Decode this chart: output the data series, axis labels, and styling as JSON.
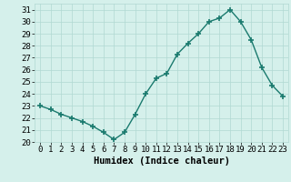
{
  "x": [
    0,
    1,
    2,
    3,
    4,
    5,
    6,
    7,
    8,
    9,
    10,
    11,
    12,
    13,
    14,
    15,
    16,
    17,
    18,
    19,
    20,
    21,
    22,
    23
  ],
  "y": [
    23.0,
    22.7,
    22.3,
    22.0,
    21.7,
    21.3,
    20.8,
    20.2,
    20.8,
    22.3,
    24.0,
    25.3,
    25.7,
    27.3,
    28.2,
    29.0,
    30.0,
    30.3,
    31.0,
    30.0,
    28.5,
    26.2,
    24.7,
    23.8
  ],
  "line_color": "#1a7a6e",
  "marker": "+",
  "marker_size": 4,
  "marker_lw": 1.2,
  "bg_color": "#d5f0eb",
  "grid_color": "#b0d8d2",
  "xlabel": "Humidex (Indice chaleur)",
  "xlim": [
    -0.5,
    23.5
  ],
  "ylim": [
    20,
    31.5
  ],
  "yticks": [
    20,
    21,
    22,
    23,
    24,
    25,
    26,
    27,
    28,
    29,
    30,
    31
  ],
  "xticks": [
    0,
    1,
    2,
    3,
    4,
    5,
    6,
    7,
    8,
    9,
    10,
    11,
    12,
    13,
    14,
    15,
    16,
    17,
    18,
    19,
    20,
    21,
    22,
    23
  ],
  "xlabel_fontsize": 7.5,
  "tick_fontsize": 6.5,
  "line_width": 1.0
}
